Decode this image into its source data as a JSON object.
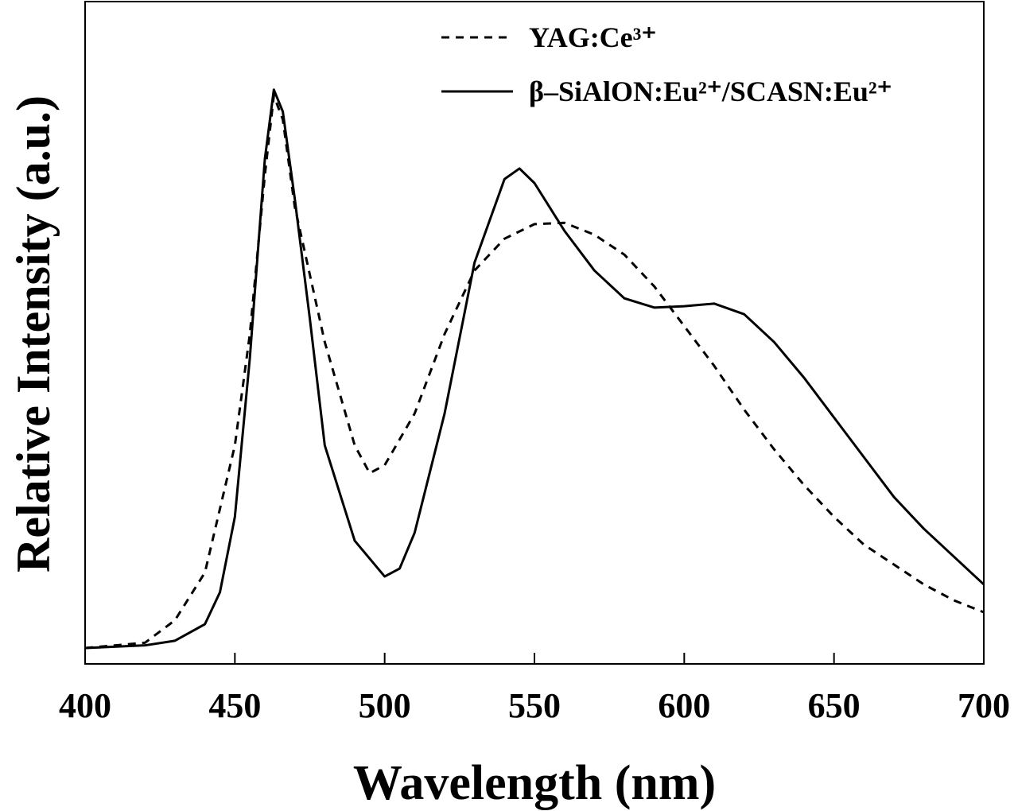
{
  "chart_data": {
    "type": "line",
    "x_label": "Wavelength (nm)",
    "y_label": "Relative Intensity (a.u.)",
    "xlim": [
      400,
      700
    ],
    "xticks": [
      400,
      450,
      500,
      550,
      600,
      650,
      700
    ],
    "ylim": [
      0,
      1
    ],
    "legend": "top-right",
    "series": [
      {
        "name": "YAG:Ce³⁺",
        "color": "#000000",
        "line_style": "dashed",
        "x": [
          400,
          420,
          430,
          440,
          450,
          455,
          460,
          463,
          466,
          470,
          480,
          490,
          495,
          500,
          510,
          520,
          530,
          540,
          550,
          560,
          570,
          580,
          590,
          600,
          610,
          620,
          630,
          640,
          650,
          660,
          670,
          680,
          690,
          700
        ],
        "values": [
          0.024,
          0.032,
          0.066,
          0.138,
          0.33,
          0.498,
          0.738,
          0.858,
          0.822,
          0.69,
          0.486,
          0.33,
          0.288,
          0.3,
          0.378,
          0.498,
          0.594,
          0.642,
          0.664,
          0.666,
          0.648,
          0.618,
          0.57,
          0.51,
          0.45,
          0.384,
          0.324,
          0.27,
          0.222,
          0.18,
          0.15,
          0.12,
          0.096,
          0.078
        ]
      },
      {
        "name": "β–SiAlON:Eu²⁺/SCASN:Eu²⁺",
        "color": "#000000",
        "line_style": "solid",
        "x": [
          400,
          420,
          430,
          440,
          445,
          450,
          455,
          460,
          463,
          466,
          470,
          475,
          480,
          490,
          500,
          505,
          510,
          520,
          530,
          540,
          545,
          550,
          560,
          570,
          580,
          590,
          600,
          610,
          620,
          630,
          640,
          650,
          660,
          670,
          680,
          690,
          700
        ],
        "values": [
          0.024,
          0.028,
          0.035,
          0.06,
          0.108,
          0.222,
          0.462,
          0.762,
          0.867,
          0.834,
          0.702,
          0.522,
          0.33,
          0.186,
          0.132,
          0.144,
          0.198,
          0.378,
          0.606,
          0.732,
          0.748,
          0.726,
          0.654,
          0.594,
          0.552,
          0.538,
          0.54,
          0.544,
          0.528,
          0.486,
          0.432,
          0.372,
          0.312,
          0.252,
          0.204,
          0.162,
          0.12
        ]
      }
    ]
  }
}
